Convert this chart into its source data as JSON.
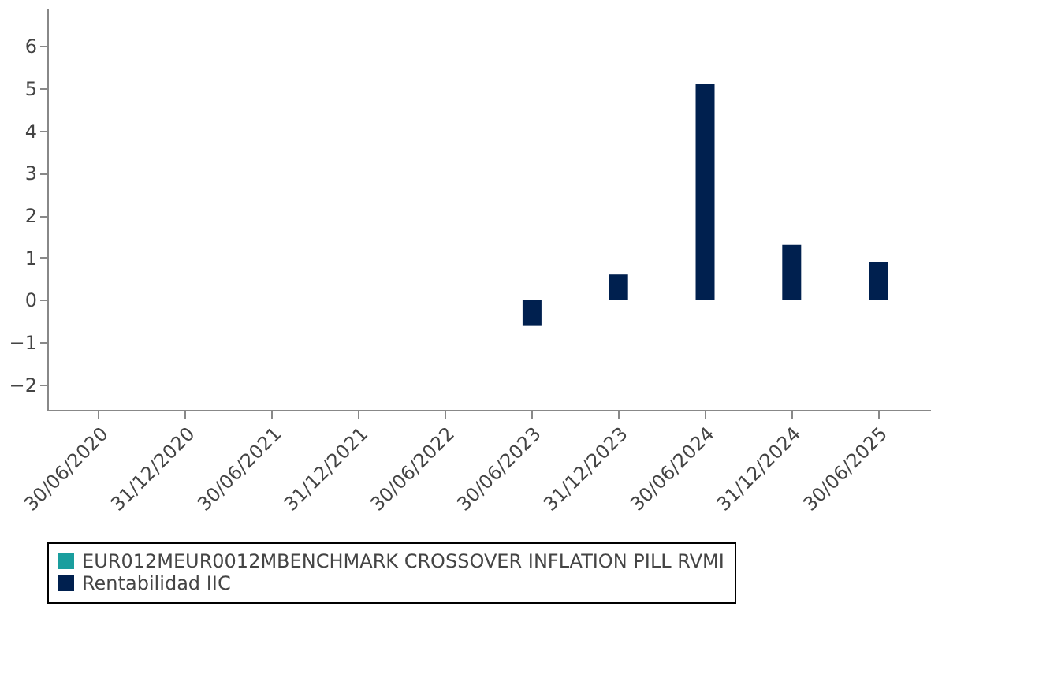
{
  "chart_data": {
    "type": "bar",
    "categories": [
      "30/06/2020",
      "31/12/2020",
      "30/06/2021",
      "31/12/2021",
      "30/06/2022",
      "30/06/2023",
      "31/12/2023",
      "30/06/2024",
      "31/12/2024",
      "30/06/2025"
    ],
    "series": [
      {
        "name": "EUR012MEUR0012MBENCHMARK CROSSOVER INFLATION PILL RVMI",
        "color": "#1a9e9e",
        "values": [
          null,
          null,
          null,
          null,
          null,
          null,
          null,
          null,
          null,
          null
        ]
      },
      {
        "name": "Rentabilidad IIC",
        "color": "#00204f",
        "values": [
          null,
          null,
          null,
          null,
          null,
          -0.6,
          0.6,
          5.1,
          1.3,
          0.9
        ]
      }
    ],
    "ylim": [
      -2.6,
      6.9
    ],
    "yticks": [
      -2,
      -1,
      0,
      1,
      2,
      3,
      4,
      5,
      6
    ],
    "grid": false,
    "legend": "bottom"
  }
}
